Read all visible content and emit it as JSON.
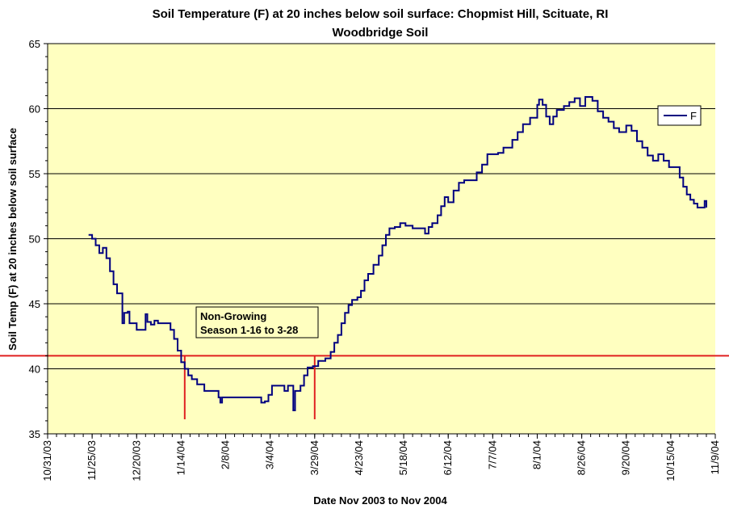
{
  "chart_data": {
    "type": "line",
    "title_line1": "Soil Temperature (F) at 20 inches below soil surface: Chopmist Hill, Scituate, RI",
    "title_line2": "Woodbridge Soil",
    "xlabel": "Date Nov 2003 to Nov 2004",
    "ylabel": "Soil Temp (F) at 20 inches below soil surface",
    "ylim": [
      35,
      65
    ],
    "yticks": [
      "35",
      "40",
      "45",
      "50",
      "55",
      "60",
      "65"
    ],
    "xlim": [
      "2003-10-31",
      "2004-11-09"
    ],
    "xtick_labels": [
      "10/31/03",
      "11/25/03",
      "12/20/03",
      "1/14/04",
      "2/8/04",
      "3/4/04",
      "3/29/04",
      "4/23/04",
      "5/18/04",
      "6/12/04",
      "7/7/04",
      "8/1/04",
      "8/26/04",
      "9/20/04",
      "10/15/04",
      "11/9/04"
    ],
    "grid": "horizontal",
    "legend_position": "top-right",
    "series": [
      {
        "name": "F",
        "color": "#000080",
        "points": [
          [
            "2003-11-23",
            50.3
          ],
          [
            "2003-11-25",
            50.0
          ],
          [
            "2003-11-27",
            49.5
          ],
          [
            "2003-11-29",
            48.9
          ],
          [
            "2003-12-01",
            49.3
          ],
          [
            "2003-12-03",
            48.5
          ],
          [
            "2003-12-05",
            47.5
          ],
          [
            "2003-12-07",
            46.5
          ],
          [
            "2003-12-09",
            45.8
          ],
          [
            "2003-12-11",
            45.8
          ],
          [
            "2003-12-12",
            43.5
          ],
          [
            "2003-12-13",
            44.3
          ],
          [
            "2003-12-15",
            44.4
          ],
          [
            "2003-12-16",
            43.5
          ],
          [
            "2003-12-18",
            43.5
          ],
          [
            "2003-12-20",
            43.0
          ],
          [
            "2003-12-24",
            43.0
          ],
          [
            "2003-12-25",
            44.2
          ],
          [
            "2003-12-26",
            43.6
          ],
          [
            "2003-12-28",
            43.4
          ],
          [
            "2003-12-30",
            43.7
          ],
          [
            "2004-01-01",
            43.5
          ],
          [
            "2004-01-05",
            43.5
          ],
          [
            "2004-01-08",
            43.0
          ],
          [
            "2004-01-10",
            42.3
          ],
          [
            "2004-01-12",
            41.4
          ],
          [
            "2004-01-14",
            40.5
          ],
          [
            "2004-01-16",
            40.0
          ],
          [
            "2004-01-18",
            39.5
          ],
          [
            "2004-01-20",
            39.2
          ],
          [
            "2004-01-23",
            38.8
          ],
          [
            "2004-01-27",
            38.3
          ],
          [
            "2004-02-01",
            38.3
          ],
          [
            "2004-02-04",
            37.8
          ],
          [
            "2004-02-05",
            37.4
          ],
          [
            "2004-02-06",
            37.8
          ],
          [
            "2004-02-10",
            37.8
          ],
          [
            "2004-02-20",
            37.8
          ],
          [
            "2004-02-26",
            37.8
          ],
          [
            "2004-02-28",
            37.4
          ],
          [
            "2004-03-01",
            37.5
          ],
          [
            "2004-03-03",
            38.0
          ],
          [
            "2004-03-05",
            38.7
          ],
          [
            "2004-03-09",
            38.7
          ],
          [
            "2004-03-12",
            38.3
          ],
          [
            "2004-03-14",
            38.7
          ],
          [
            "2004-03-17",
            36.8
          ],
          [
            "2004-03-18",
            38.3
          ],
          [
            "2004-03-21",
            38.7
          ],
          [
            "2004-03-23",
            39.5
          ],
          [
            "2004-03-25",
            40.1
          ],
          [
            "2004-03-28",
            40.2
          ],
          [
            "2004-03-31",
            40.6
          ],
          [
            "2004-04-04",
            40.8
          ],
          [
            "2004-04-07",
            41.3
          ],
          [
            "2004-04-09",
            42.0
          ],
          [
            "2004-04-11",
            42.6
          ],
          [
            "2004-04-13",
            43.5
          ],
          [
            "2004-04-15",
            44.3
          ],
          [
            "2004-04-17",
            44.9
          ],
          [
            "2004-04-19",
            45.3
          ],
          [
            "2004-04-22",
            45.5
          ],
          [
            "2004-04-24",
            46.0
          ],
          [
            "2004-04-26",
            46.8
          ],
          [
            "2004-04-28",
            47.3
          ],
          [
            "2004-05-01",
            48.0
          ],
          [
            "2004-05-04",
            48.7
          ],
          [
            "2004-05-06",
            49.5
          ],
          [
            "2004-05-08",
            50.3
          ],
          [
            "2004-05-10",
            50.8
          ],
          [
            "2004-05-13",
            50.9
          ],
          [
            "2004-05-16",
            51.2
          ],
          [
            "2004-05-19",
            51.0
          ],
          [
            "2004-05-23",
            50.8
          ],
          [
            "2004-05-28",
            50.8
          ],
          [
            "2004-05-30",
            50.4
          ],
          [
            "2004-06-01",
            50.9
          ],
          [
            "2004-06-03",
            51.2
          ],
          [
            "2004-06-06",
            51.8
          ],
          [
            "2004-06-08",
            52.5
          ],
          [
            "2004-06-10",
            53.2
          ],
          [
            "2004-06-12",
            52.8
          ],
          [
            "2004-06-15",
            53.7
          ],
          [
            "2004-06-18",
            54.3
          ],
          [
            "2004-06-21",
            54.5
          ],
          [
            "2004-06-25",
            54.5
          ],
          [
            "2004-06-28",
            55.1
          ],
          [
            "2004-07-01",
            55.7
          ],
          [
            "2004-07-04",
            56.5
          ],
          [
            "2004-07-10",
            56.6
          ],
          [
            "2004-07-13",
            57.0
          ],
          [
            "2004-07-18",
            57.6
          ],
          [
            "2004-07-21",
            58.2
          ],
          [
            "2004-07-24",
            58.8
          ],
          [
            "2004-07-28",
            59.3
          ],
          [
            "2004-08-01",
            60.3
          ],
          [
            "2004-08-02",
            60.7
          ],
          [
            "2004-08-04",
            60.3
          ],
          [
            "2004-08-06",
            59.4
          ],
          [
            "2004-08-08",
            58.8
          ],
          [
            "2004-08-10",
            59.4
          ],
          [
            "2004-08-12",
            59.9
          ],
          [
            "2004-08-16",
            60.2
          ],
          [
            "2004-08-19",
            60.5
          ],
          [
            "2004-08-22",
            60.8
          ],
          [
            "2004-08-25",
            60.2
          ],
          [
            "2004-08-28",
            60.9
          ],
          [
            "2004-09-01",
            60.6
          ],
          [
            "2004-09-04",
            59.8
          ],
          [
            "2004-09-07",
            59.3
          ],
          [
            "2004-09-10",
            59.0
          ],
          [
            "2004-09-13",
            58.5
          ],
          [
            "2004-09-16",
            58.2
          ],
          [
            "2004-09-20",
            58.7
          ],
          [
            "2004-09-23",
            58.3
          ],
          [
            "2004-09-26",
            57.5
          ],
          [
            "2004-09-29",
            57.0
          ],
          [
            "2004-10-02",
            56.4
          ],
          [
            "2004-10-05",
            56.0
          ],
          [
            "2004-10-08",
            56.5
          ],
          [
            "2004-10-11",
            56.0
          ],
          [
            "2004-10-14",
            55.5
          ],
          [
            "2004-10-17",
            55.5
          ],
          [
            "2004-10-20",
            54.7
          ],
          [
            "2004-10-22",
            54.0
          ],
          [
            "2004-10-24",
            53.4
          ],
          [
            "2004-10-26",
            53.0
          ],
          [
            "2004-10-28",
            52.7
          ],
          [
            "2004-10-30",
            52.4
          ],
          [
            "2004-11-01",
            52.4
          ],
          [
            "2004-11-03",
            52.9
          ],
          [
            "2004-11-04",
            52.4
          ]
        ]
      }
    ],
    "threshold": {
      "value": 41.0,
      "color": "#e02020"
    },
    "markers": [
      {
        "date": "2004-01-16",
        "color": "#e02020"
      },
      {
        "date": "2004-03-29",
        "color": "#e02020"
      }
    ],
    "annotation": {
      "line1": "Non-Growing",
      "line2": "Season 1-16 to 3-28"
    },
    "plot_bg": "#ffffc0"
  }
}
